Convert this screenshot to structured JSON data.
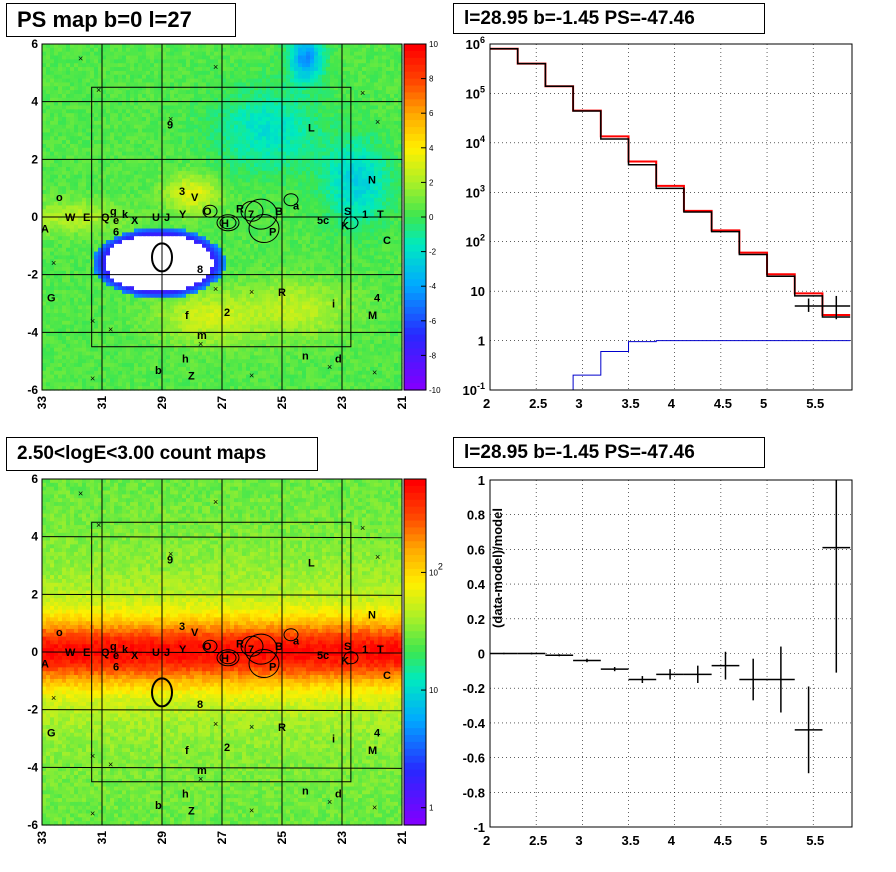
{
  "panels": {
    "top_left_title": "PS map b=0 l=27",
    "top_right_title": "l=28.95 b=-1.45 PS=-47.46",
    "bottom_left_title": "2.50<logE<3.00 count maps",
    "bottom_right_title": "l=28.95 b=-1.45 PS=-47.46"
  },
  "colors": {
    "data_series": "#000000",
    "model_series": "#ff0000",
    "blue_series": "#0000cc",
    "grid": "#000000"
  },
  "chart_data": [
    {
      "type": "heatmap",
      "title": "PS map b=0 l=27",
      "x_ticks": [
        "33",
        "31",
        "29",
        "27",
        "25",
        "23",
        "21"
      ],
      "y_ticks": [
        "6",
        "4",
        "2",
        "0",
        "-2",
        "-4",
        "-6"
      ],
      "xlim": [
        33,
        21
      ],
      "ylim": [
        -6,
        6
      ],
      "colorbar": {
        "range": [
          -10,
          10
        ],
        "ticks": [
          "10",
          "8",
          "6",
          "4",
          "2",
          "0",
          "-2",
          "-4",
          "-6",
          "-8",
          "-10"
        ]
      },
      "source_labels": [
        "A",
        "W",
        "E",
        "Q",
        "g",
        "e",
        "k",
        "6",
        "X",
        "U",
        "J",
        "Y",
        "3",
        "V",
        "O",
        "H",
        "R",
        "7",
        "B",
        "P",
        "a",
        "5",
        "c",
        "K",
        "S",
        "T",
        "C",
        "N",
        "L",
        "9",
        "8",
        "G",
        "f",
        "2",
        "R",
        "i",
        "4",
        "M",
        "m",
        "h",
        "n",
        "d",
        "b",
        "Z",
        "o",
        "1"
      ]
    },
    {
      "type": "line",
      "title": "l=28.95 b=-1.45 PS=-47.46",
      "x_ticks": [
        "2",
        "2.5",
        "3",
        "3.5",
        "4",
        "4.5",
        "5",
        "5.5"
      ],
      "y_ticks": [
        "10^-1",
        "1",
        "10",
        "10^2",
        "10^3",
        "10^4",
        "10^5",
        "10^6"
      ],
      "xlim": [
        2.0,
        5.92
      ],
      "ylim": [
        0.1,
        1000000
      ],
      "yscale": "log",
      "bin_edges": [
        2.0,
        2.3,
        2.6,
        2.9,
        3.2,
        3.5,
        3.8,
        4.1,
        4.4,
        4.7,
        5.0,
        5.3,
        5.6,
        5.9
      ],
      "series": [
        {
          "name": "",
          "style": "red-step",
          "values": [
            800000,
            400000,
            140000,
            45000,
            13500,
            4200,
            1350,
            420,
            170,
            60,
            22,
            9,
            3.3
          ]
        },
        {
          "name": "",
          "style": "black-step",
          "values": [
            800000,
            400000,
            140000,
            44000,
            12000,
            3600,
            1200,
            400,
            160,
            55,
            20,
            8,
            3.0
          ]
        },
        {
          "name": "",
          "style": "black-errorbar",
          "x": [
            5.45,
            5.75
          ],
          "values": [
            5,
            5
          ],
          "err_low": [
            3.8,
            2.7
          ],
          "err_high": [
            7.1,
            8.0
          ]
        },
        {
          "name": "",
          "style": "blue-step",
          "values": [
            null,
            null,
            null,
            0.2,
            0.6,
            0.95,
            1,
            1,
            1,
            1,
            1,
            1,
            1
          ]
        }
      ]
    },
    {
      "type": "heatmap",
      "title": "2.50<logE<3.00 count maps",
      "x_ticks": [
        "33",
        "31",
        "29",
        "27",
        "25",
        "23",
        "21"
      ],
      "y_ticks": [
        "6",
        "4",
        "2",
        "0",
        "-2",
        "-4",
        "-6"
      ],
      "xlim": [
        33,
        21
      ],
      "ylim": [
        -6,
        6
      ],
      "colorbar": {
        "scale": "log",
        "ticks": [
          "10^2",
          "10",
          "1"
        ]
      }
    },
    {
      "type": "scatter",
      "title": "l=28.95 b=-1.45 PS=-47.46",
      "ylabel": "(data-model)/model",
      "x_ticks": [
        "2",
        "2.5",
        "3",
        "3.5",
        "4",
        "4.5",
        "5",
        "5.5"
      ],
      "y_ticks": [
        "1",
        "0.8",
        "0.6",
        "0.4",
        "0.2",
        "0",
        "-0.2",
        "-0.4",
        "-0.6",
        "-0.8",
        "-1"
      ],
      "xlim": [
        2.0,
        5.92
      ],
      "ylim": [
        -1,
        1
      ],
      "points": [
        {
          "x": 2.15,
          "y": 0.0,
          "xerr": 0.15,
          "yerr": 0.004
        },
        {
          "x": 2.45,
          "y": 0.0,
          "xerr": 0.15,
          "yerr": 0.005
        },
        {
          "x": 2.75,
          "y": -0.01,
          "xerr": 0.15,
          "yerr": 0.006
        },
        {
          "x": 3.05,
          "y": -0.04,
          "xerr": 0.15,
          "yerr": 0.01
        },
        {
          "x": 3.35,
          "y": -0.09,
          "xerr": 0.15,
          "yerr": 0.012
        },
        {
          "x": 3.65,
          "y": -0.15,
          "xerr": 0.15,
          "yerr": 0.02
        },
        {
          "x": 3.95,
          "y": -0.12,
          "xerr": 0.15,
          "yerr": 0.03
        },
        {
          "x": 4.25,
          "y": -0.12,
          "xerr": 0.15,
          "yerr": 0.05
        },
        {
          "x": 4.55,
          "y": -0.07,
          "xerr": 0.15,
          "yerr": 0.08
        },
        {
          "x": 4.85,
          "y": -0.15,
          "xerr": 0.15,
          "yerr": 0.12
        },
        {
          "x": 5.15,
          "y": -0.15,
          "xerr": 0.15,
          "yerr": 0.19
        },
        {
          "x": 5.45,
          "y": -0.44,
          "xerr": 0.15,
          "yerr": 0.25
        },
        {
          "x": 5.75,
          "y": 0.61,
          "xerr": 0.15,
          "yerr": 0.72
        }
      ]
    }
  ]
}
